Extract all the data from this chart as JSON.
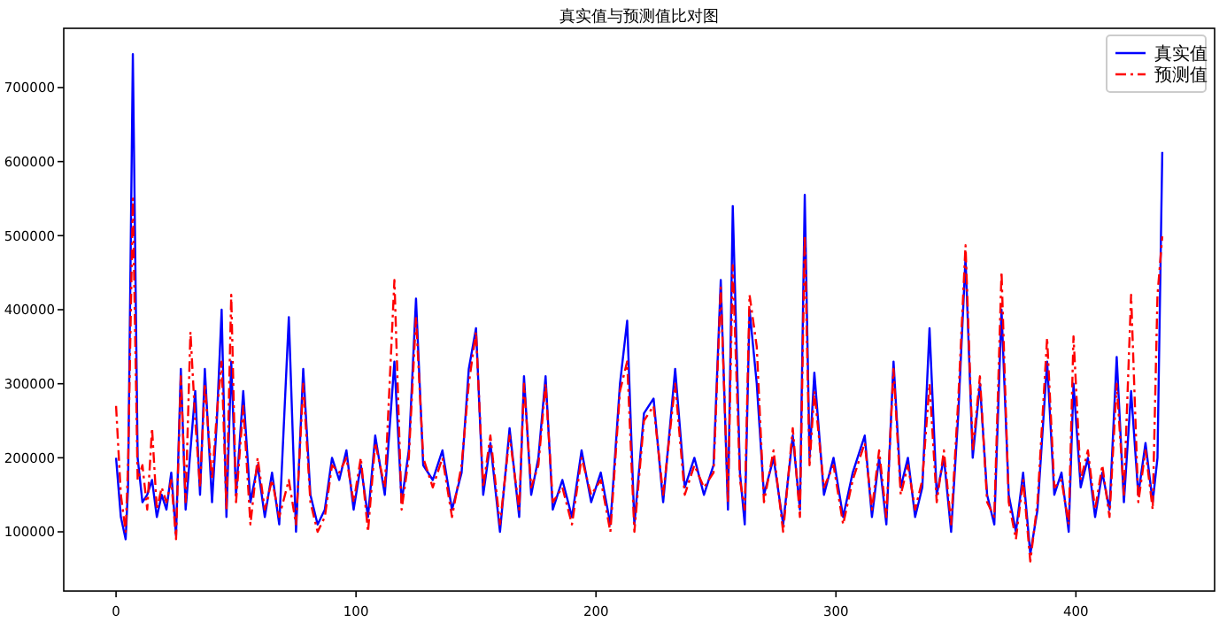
{
  "chart_data": {
    "type": "line",
    "title": "真实值与预测值比对图",
    "x": [
      0,
      2,
      4,
      5,
      7,
      9,
      11,
      13,
      15,
      17,
      19,
      21,
      23,
      25,
      27,
      29,
      31,
      33,
      35,
      37,
      40,
      42,
      44,
      46,
      48,
      50,
      53,
      56,
      59,
      62,
      65,
      68,
      72,
      75,
      78,
      81,
      84,
      87,
      90,
      93,
      96,
      99,
      102,
      105,
      108,
      112,
      116,
      119,
      122,
      125,
      128,
      132,
      136,
      140,
      144,
      147,
      150,
      153,
      156,
      160,
      164,
      168,
      170,
      173,
      176,
      179,
      182,
      186,
      190,
      194,
      198,
      202,
      206,
      210,
      213,
      216,
      220,
      224,
      228,
      233,
      237,
      241,
      245,
      249,
      252,
      255,
      257,
      260,
      262,
      264,
      267,
      270,
      274,
      278,
      282,
      285,
      287,
      289,
      291,
      295,
      299,
      303,
      307,
      312,
      315,
      318,
      321,
      324,
      327,
      330,
      333,
      336,
      339,
      342,
      345,
      348,
      351,
      354,
      357,
      360,
      363,
      366,
      369,
      372,
      375,
      378,
      381,
      384,
      388,
      391,
      394,
      397,
      399,
      402,
      405,
      408,
      411,
      414,
      417,
      420,
      423,
      426,
      429,
      432,
      434,
      436
    ],
    "series": [
      {
        "name": "真实值",
        "color": "#0000ff",
        "line_style": "solid",
        "values": [
          200000,
          120000,
          90000,
          160000,
          745000,
          200000,
          140000,
          150000,
          170000,
          120000,
          150000,
          130000,
          180000,
          95000,
          320000,
          130000,
          210000,
          290000,
          150000,
          320000,
          140000,
          250000,
          400000,
          120000,
          330000,
          150000,
          290000,
          140000,
          190000,
          120000,
          180000,
          110000,
          390000,
          100000,
          320000,
          150000,
          110000,
          130000,
          200000,
          170000,
          210000,
          130000,
          190000,
          120000,
          230000,
          150000,
          330000,
          140000,
          210000,
          415000,
          190000,
          170000,
          210000,
          130000,
          180000,
          320000,
          375000,
          150000,
          220000,
          100000,
          240000,
          120000,
          310000,
          150000,
          200000,
          310000,
          130000,
          170000,
          120000,
          210000,
          140000,
          180000,
          110000,
          300000,
          385000,
          110000,
          260000,
          280000,
          140000,
          320000,
          160000,
          200000,
          150000,
          190000,
          440000,
          130000,
          540000,
          180000,
          110000,
          400000,
          300000,
          150000,
          200000,
          110000,
          230000,
          130000,
          555000,
          200000,
          315000,
          150000,
          200000,
          120000,
          180000,
          230000,
          120000,
          200000,
          110000,
          330000,
          160000,
          200000,
          120000,
          160000,
          375000,
          150000,
          200000,
          100000,
          260000,
          470000,
          200000,
          300000,
          150000,
          110000,
          400000,
          150000,
          100000,
          180000,
          70000,
          130000,
          330000,
          150000,
          180000,
          100000,
          300000,
          160000,
          200000,
          120000,
          180000,
          130000,
          336000,
          140000,
          290000,
          150000,
          220000,
          140000,
          200000,
          613000
        ]
      },
      {
        "name": "预测值",
        "color": "#ff0000",
        "line_style": "dashdot",
        "values": [
          270000,
          150000,
          100000,
          190000,
          550000,
          170000,
          190000,
          130000,
          240000,
          130000,
          160000,
          140000,
          170000,
          90000,
          310000,
          140000,
          370000,
          250000,
          160000,
          300000,
          170000,
          260000,
          330000,
          130000,
          420000,
          140000,
          270000,
          110000,
          200000,
          130000,
          170000,
          120000,
          170000,
          110000,
          300000,
          140000,
          100000,
          120000,
          190000,
          180000,
          200000,
          140000,
          200000,
          100000,
          220000,
          160000,
          440000,
          130000,
          200000,
          390000,
          200000,
          160000,
          200000,
          120000,
          190000,
          300000,
          370000,
          160000,
          230000,
          110000,
          230000,
          130000,
          300000,
          160000,
          190000,
          300000,
          140000,
          160000,
          110000,
          200000,
          150000,
          170000,
          100000,
          290000,
          330000,
          100000,
          250000,
          270000,
          150000,
          300000,
          150000,
          190000,
          160000,
          180000,
          430000,
          140000,
          460000,
          170000,
          130000,
          420000,
          350000,
          140000,
          210000,
          100000,
          240000,
          120000,
          500000,
          190000,
          290000,
          160000,
          190000,
          110000,
          170000,
          220000,
          130000,
          210000,
          120000,
          320000,
          150000,
          190000,
          130000,
          170000,
          300000,
          140000,
          210000,
          110000,
          280000,
          487000,
          210000,
          310000,
          140000,
          120000,
          451000,
          140000,
          90000,
          170000,
          60000,
          140000,
          362000,
          160000,
          170000,
          110000,
          364000,
          170000,
          210000,
          130000,
          190000,
          120000,
          300000,
          150000,
          420000,
          140000,
          210000,
          130000,
          420000,
          499000
        ]
      }
    ],
    "xlim": [
      -21.8,
      457.8
    ],
    "ylim": [
      20000,
      780000
    ],
    "xticks": [
      0,
      100,
      200,
      300,
      400
    ],
    "yticks": [
      100000,
      200000,
      300000,
      400000,
      500000,
      600000,
      700000
    ],
    "legend": "top right"
  }
}
